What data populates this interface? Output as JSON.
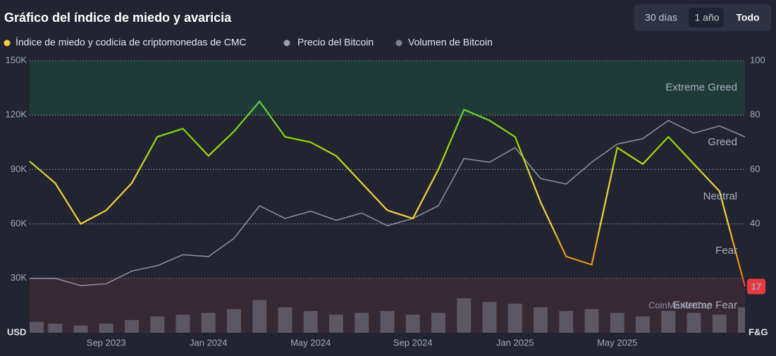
{
  "chart_data": {
    "type": "line",
    "title": "Gráfico del índice de miedo y avaricia",
    "range_buttons": [
      "30 días",
      "1 año",
      "Todo"
    ],
    "x": [
      "2023-06",
      "2023-07",
      "2023-08",
      "2023-09",
      "2023-10",
      "2023-11",
      "2023-12",
      "2024-01",
      "2024-02",
      "2024-03",
      "2024-04",
      "2024-05",
      "2024-06",
      "2024-07",
      "2024-08",
      "2024-09",
      "2024-10",
      "2024-11",
      "2024-12",
      "2025-01",
      "2025-02",
      "2025-03",
      "2025-04",
      "2025-05",
      "2025-06",
      "2025-07",
      "2025-08",
      "2025-09",
      "2025-10"
    ],
    "xlim": [
      "2023-06",
      "2025-10"
    ],
    "xticks": [
      {
        "value": "2023-09",
        "label": "Sep 2023"
      },
      {
        "value": "2024-01",
        "label": "Jan 2024"
      },
      {
        "value": "2024-05",
        "label": "May 2024"
      },
      {
        "value": "2024-09",
        "label": "Sep 2024"
      },
      {
        "value": "2025-01",
        "label": "Jan 2025"
      },
      {
        "value": "2025-05",
        "label": "May 2025"
      }
    ],
    "series": [
      {
        "name": "Índice de miedo y codicia de criptomonedas de CMC",
        "color": "#f3d23c",
        "axis": "y2",
        "values": [
          63,
          55,
          40,
          45,
          55,
          72,
          75,
          65,
          74,
          85,
          72,
          70,
          65,
          55,
          45,
          42,
          60,
          82,
          78,
          72,
          48,
          28,
          25,
          68,
          62,
          72,
          62,
          52,
          17
        ]
      },
      {
        "name": "Precio del Bitcoin",
        "color": "#9aa0ad",
        "values": [
          30000,
          30000,
          26000,
          27000,
          34000,
          37000,
          43000,
          42000,
          52000,
          70000,
          63000,
          67000,
          62000,
          66000,
          59000,
          63000,
          70000,
          96000,
          94000,
          102000,
          85000,
          82000,
          94000,
          104000,
          107000,
          117000,
          110000,
          114000,
          108000
        ]
      },
      {
        "name": "Volumen de Bitcoin",
        "color": "#6a6576",
        "type": "bar",
        "values": [
          6000,
          5000,
          4000,
          5000,
          7000,
          9000,
          10000,
          11000,
          13000,
          18000,
          14000,
          12000,
          10000,
          11000,
          12000,
          10000,
          11000,
          19000,
          17000,
          16000,
          14000,
          12000,
          13000,
          11000,
          9000,
          12000,
          11000,
          10000,
          14000
        ]
      }
    ],
    "ylim": [
      0,
      150000
    ],
    "yticks": [
      {
        "value": 30000,
        "label": "30K"
      },
      {
        "value": 60000,
        "label": "60K"
      },
      {
        "value": 90000,
        "label": "90K"
      },
      {
        "value": 120000,
        "label": "120K"
      },
      {
        "value": 150000,
        "label": "150K"
      }
    ],
    "y2lim": [
      0,
      100
    ],
    "y2ticks": [
      40,
      60,
      80,
      100
    ],
    "ylabel": "USD",
    "y2label": "F&G",
    "zones": [
      {
        "label": "Extreme Greed",
        "from": 80,
        "to": 100,
        "color": "#1f3f3a"
      },
      {
        "label": "Greed",
        "from": 60,
        "to": 80
      },
      {
        "label": "Neutral",
        "from": 40,
        "to": 60
      },
      {
        "label": "Fear",
        "from": 20,
        "to": 40
      },
      {
        "label": "Extreme Fear",
        "from": 0,
        "to": 20,
        "color": "#3a2a35"
      }
    ],
    "watermark": "CoinMarketCap",
    "grid": true
  }
}
